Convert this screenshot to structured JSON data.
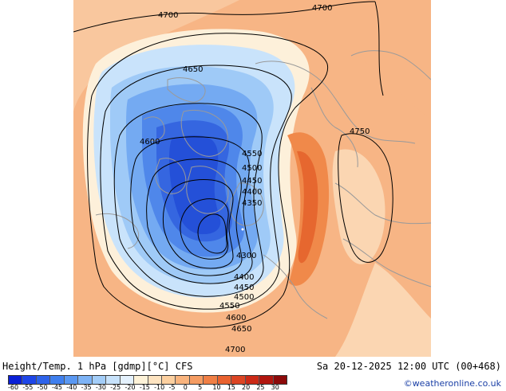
{
  "header": {
    "title_left": "Height/Temp. 1 hPa [gdmp][°C] CFS",
    "title_right": "Sa 20-12-2025 12:00 UTC (00+468)",
    "credit": "©weatheronline.co.uk"
  },
  "legend": {
    "colors": [
      "#0a1fd6",
      "#1e46e8",
      "#2e63ea",
      "#3f7fee",
      "#5a98f2",
      "#7db3f6",
      "#a3cdf8",
      "#c7e2fb",
      "#e4f1fd",
      "#fdf2d8",
      "#fde3c0",
      "#fcd0a0",
      "#f9b47e",
      "#f59c62",
      "#f07f45",
      "#e9622f",
      "#dc4523",
      "#cc2a17",
      "#b1160f",
      "#8c0a0a"
    ],
    "ticks": [
      "-60",
      "-55",
      "-50",
      "-45",
      "-40",
      "-35",
      "-30",
      "-25",
      "-20",
      "-15",
      "-10",
      "-5",
      "0",
      "5",
      "10",
      "15",
      "20",
      "25",
      "30"
    ]
  },
  "contours": {
    "labels": [
      "4700",
      "4700",
      "4650",
      "4600",
      "4550",
      "4500",
      "4450",
      "4400",
      "4350",
      "4300",
      "4750",
      "4400",
      "4450",
      "4500",
      "4550",
      "4600",
      "4650",
      "4700"
    ]
  }
}
